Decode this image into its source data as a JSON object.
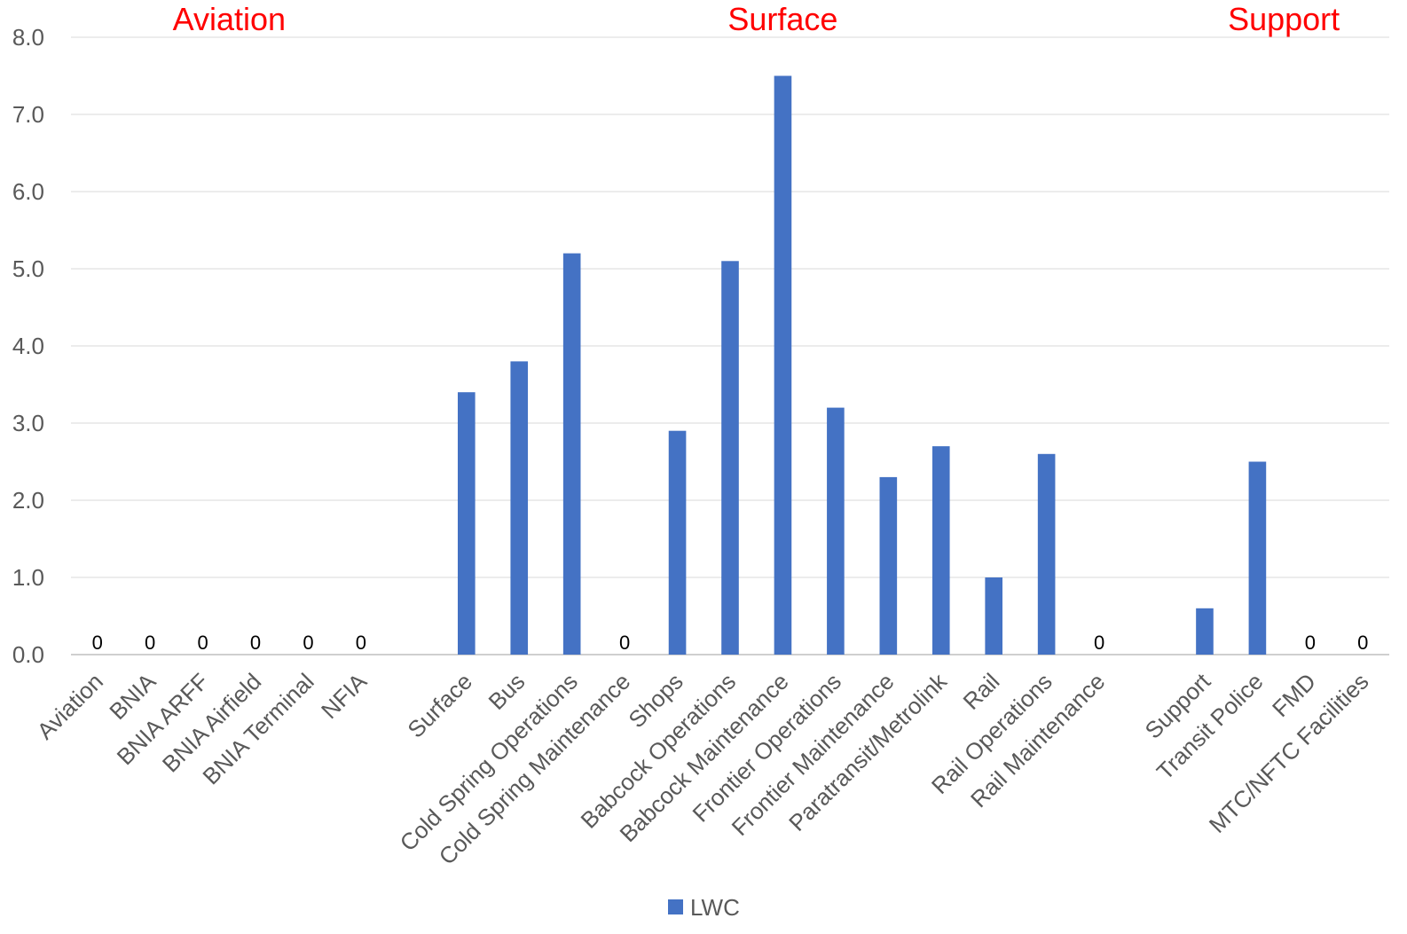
{
  "chart_data": {
    "type": "bar",
    "ylim": [
      0,
      8
    ],
    "y_ticks": [
      "0.0",
      "1.0",
      "2.0",
      "3.0",
      "4.0",
      "5.0",
      "6.0",
      "7.0",
      "8.0"
    ],
    "grid": true,
    "legend_position": "bottom",
    "series": [
      {
        "name": "LWC",
        "color": "#4472c4"
      }
    ],
    "groups": [
      {
        "label": "Aviation",
        "color": "#ff0000",
        "start": 0,
        "end": 5
      },
      {
        "label": "Surface",
        "color": "#ff0000",
        "start": 7,
        "end": 19
      },
      {
        "label": "Support",
        "color": "#ff0000",
        "start": 21,
        "end": 24
      }
    ],
    "categories": [
      "Aviation",
      "BNIA",
      "BNIA ARFF",
      "BNIA Airfield",
      "BNIA Terminal",
      "NFIA",
      "",
      "Surface",
      "Bus",
      "Cold Spring Operations",
      "Cold Spring Maintenance",
      "Shops",
      "Babcock Operations",
      "Babcock Maintenance",
      "Frontier Operations",
      "Frontier Maintenance",
      "Paratransit/Metrolink",
      "Rail",
      "Rail Operations",
      "Rail Maintenance",
      "",
      "Support",
      "Transit Police",
      "FMD",
      "MTC/NFTC Facilities"
    ],
    "values": [
      0,
      0,
      0,
      0,
      0,
      0,
      null,
      3.4,
      3.8,
      5.2,
      0,
      2.9,
      5.1,
      7.5,
      3.2,
      2.3,
      2.7,
      1.0,
      2.6,
      0,
      null,
      0.6,
      2.5,
      0,
      0
    ],
    "zero_label": "0"
  }
}
